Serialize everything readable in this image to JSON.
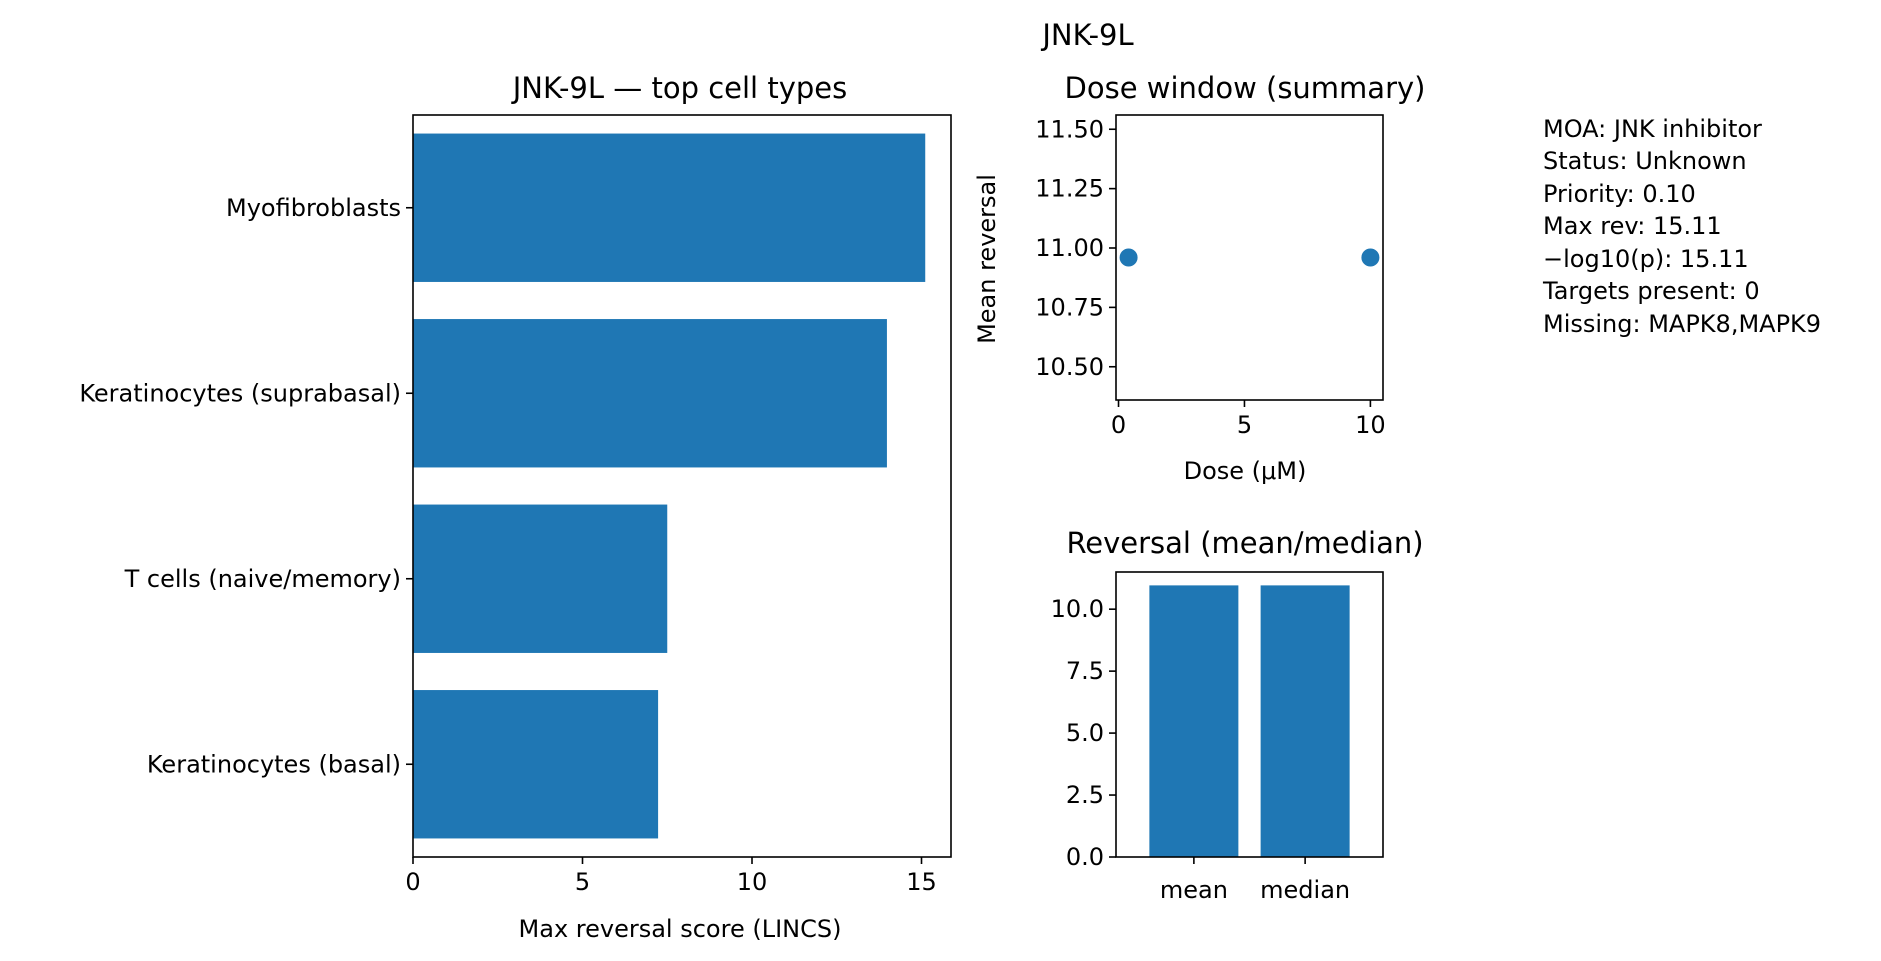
{
  "suptitle": "JNK-9L",
  "info_lines": [
    "MOA: JNK inhibitor",
    "Status: Unknown",
    "Priority: 0.10",
    "Max rev: 15.11",
    "−log10(p): 15.11",
    "Targets present: 0",
    "Missing: MAPK8,MAPK9"
  ],
  "colors": {
    "bar": "#1f77b4",
    "axis": "#000000",
    "background": "#ffffff"
  },
  "chart_data": [
    {
      "type": "bar",
      "orientation": "horizontal",
      "title": "JNK-9L — top cell types",
      "categories": [
        "Myofibroblasts",
        "Keratinocytes (suprabasal)",
        "T cells (naive/memory)",
        "Keratinocytes (basal)"
      ],
      "values": [
        15.11,
        13.98,
        7.5,
        7.23
      ],
      "xlabel": "Max reversal score (LINCS)",
      "ylabel": "",
      "xlim": [
        0,
        15.87
      ],
      "xticks": [
        0,
        5,
        10,
        15
      ],
      "xtick_labels": [
        "0",
        "5",
        "10",
        "15"
      ],
      "grid": false
    },
    {
      "type": "scatter",
      "title": "Dose window (summary)",
      "x": [
        0.4,
        10
      ],
      "y": [
        10.96,
        10.96
      ],
      "xlabel": "Dose (μM)",
      "ylabel": "Mean reversal",
      "xlim": [
        -0.1,
        10.5
      ],
      "ylim": [
        10.36,
        11.56
      ],
      "xticks": [
        0,
        5,
        10
      ],
      "xtick_labels": [
        "0",
        "5",
        "10"
      ],
      "yticks": [
        10.5,
        10.75,
        11.0,
        11.25,
        11.5
      ],
      "ytick_labels": [
        "10.50",
        "10.75",
        "11.00",
        "11.25",
        "11.50"
      ],
      "grid": false
    },
    {
      "type": "bar",
      "title": "Reversal (mean/median)",
      "categories": [
        "mean",
        "median"
      ],
      "values": [
        10.96,
        10.96
      ],
      "xlabel": "",
      "ylabel": "",
      "ylim": [
        0,
        11.5
      ],
      "yticks": [
        0,
        2.5,
        5,
        7.5,
        10
      ],
      "ytick_labels": [
        "0.0",
        "2.5",
        "5.0",
        "7.5",
        "10.0"
      ],
      "grid": false
    }
  ]
}
